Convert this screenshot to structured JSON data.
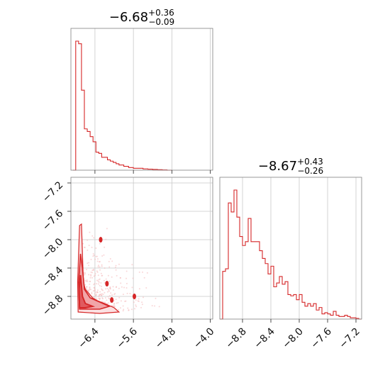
{
  "chart_data": [
    {
      "type": "histogram",
      "panel": "marginal-1",
      "title": {
        "median": "−6.68",
        "plus": "+0.36",
        "minus": "−0.09"
      },
      "xlim": [
        -6.9,
        -3.95
      ],
      "grid": true,
      "xticks": [
        -6.4,
        -5.6,
        -4.8,
        -4.0
      ],
      "bin_edges": [
        -6.86,
        -6.8,
        -6.74,
        -6.68,
        -6.62,
        -6.56,
        -6.5,
        -6.44,
        -6.38,
        -6.32,
        -6.26,
        -6.2,
        -6.14,
        -6.08,
        -6.02,
        -5.96,
        -5.9,
        -5.8,
        -5.7,
        -5.6,
        -5.5,
        -5.4,
        -5.3,
        -5.2,
        -5.1,
        -5.0,
        -4.9,
        -4.8
      ],
      "counts": [
        0,
        1.0,
        0.98,
        0.62,
        0.32,
        0.3,
        0.26,
        0.22,
        0.14,
        0.13,
        0.1,
        0.1,
        0.08,
        0.07,
        0.06,
        0.05,
        0.04,
        0.03,
        0.02,
        0.015,
        0.015,
        0.01,
        0.008,
        0.006,
        0.004,
        0.002,
        0.0
      ]
    },
    {
      "type": "histogram",
      "panel": "marginal-2",
      "title": {
        "median": "−8.67",
        "plus": "+0.43",
        "minus": "−0.26"
      },
      "xlim": [
        -9.12,
        -7.12
      ],
      "grid": true,
      "xticks": [
        -8.8,
        -8.4,
        -8.0,
        -7.6,
        -7.2
      ],
      "bin_edges": [
        -9.12,
        -9.08,
        -9.04,
        -9.0,
        -8.96,
        -8.92,
        -8.88,
        -8.84,
        -8.8,
        -8.76,
        -8.72,
        -8.68,
        -8.64,
        -8.6,
        -8.56,
        -8.52,
        -8.48,
        -8.44,
        -8.4,
        -8.36,
        -8.32,
        -8.28,
        -8.24,
        -8.2,
        -8.16,
        -8.12,
        -8.08,
        -8.04,
        -8.0,
        -7.96,
        -7.92,
        -7.88,
        -7.84,
        -7.8,
        -7.76,
        -7.72,
        -7.68,
        -7.64,
        -7.6,
        -7.56,
        -7.52,
        -7.48,
        -7.44,
        -7.4,
        -7.36,
        -7.32,
        -7.28,
        -7.24,
        -7.2,
        -7.16,
        -7.12
      ],
      "counts": [
        0,
        0.37,
        0.39,
        0.9,
        0.83,
        1.0,
        0.79,
        0.64,
        0.57,
        0.6,
        0.78,
        0.6,
        0.6,
        0.6,
        0.53,
        0.47,
        0.43,
        0.35,
        0.41,
        0.25,
        0.28,
        0.33,
        0.27,
        0.29,
        0.19,
        0.18,
        0.19,
        0.15,
        0.19,
        0.13,
        0.1,
        0.12,
        0.1,
        0.12,
        0.07,
        0.09,
        0.04,
        0.05,
        0.04,
        0.03,
        0.06,
        0.03,
        0.02,
        0.02,
        0.03,
        0.02,
        0.01,
        0.01,
        0.005,
        0.0
      ]
    },
    {
      "type": "scatter",
      "panel": "joint",
      "xlim": [
        -6.9,
        -3.95
      ],
      "ylim": [
        -9.12,
        -7.12
      ],
      "grid": true,
      "xticks": [
        -6.4,
        -5.6,
        -4.8,
        -4.0
      ],
      "yticks": [
        -7.2,
        -7.6,
        -8.0,
        -8.4,
        -8.8
      ],
      "contour_levels": [
        [
          [
            -6.72,
            -7.8
          ],
          [
            -6.68,
            -7.78
          ],
          [
            -6.66,
            -8.2
          ],
          [
            -6.64,
            -8.6
          ],
          [
            -6.6,
            -8.7
          ],
          [
            -6.5,
            -8.78
          ],
          [
            -6.45,
            -8.82
          ],
          [
            -6.35,
            -8.86
          ],
          [
            -6.2,
            -8.9
          ],
          [
            -6.0,
            -8.96
          ],
          [
            -5.9,
            -9.02
          ],
          [
            -6.3,
            -9.04
          ],
          [
            -6.75,
            -9.02
          ],
          [
            -6.76,
            -8.6
          ]
        ],
        [
          [
            -6.7,
            -8.2
          ],
          [
            -6.66,
            -8.4
          ],
          [
            -6.62,
            -8.7
          ],
          [
            -6.5,
            -8.82
          ],
          [
            -6.3,
            -8.88
          ],
          [
            -6.1,
            -8.94
          ],
          [
            -6.3,
            -8.98
          ],
          [
            -6.72,
            -8.98
          ],
          [
            -6.74,
            -8.6
          ]
        ],
        [
          [
            -6.7,
            -8.5
          ],
          [
            -6.66,
            -8.8
          ],
          [
            -6.6,
            -8.9
          ],
          [
            -6.45,
            -8.94
          ],
          [
            -6.6,
            -8.96
          ],
          [
            -6.72,
            -8.96
          ],
          [
            -6.73,
            -8.7
          ]
        ]
      ]
    }
  ]
}
